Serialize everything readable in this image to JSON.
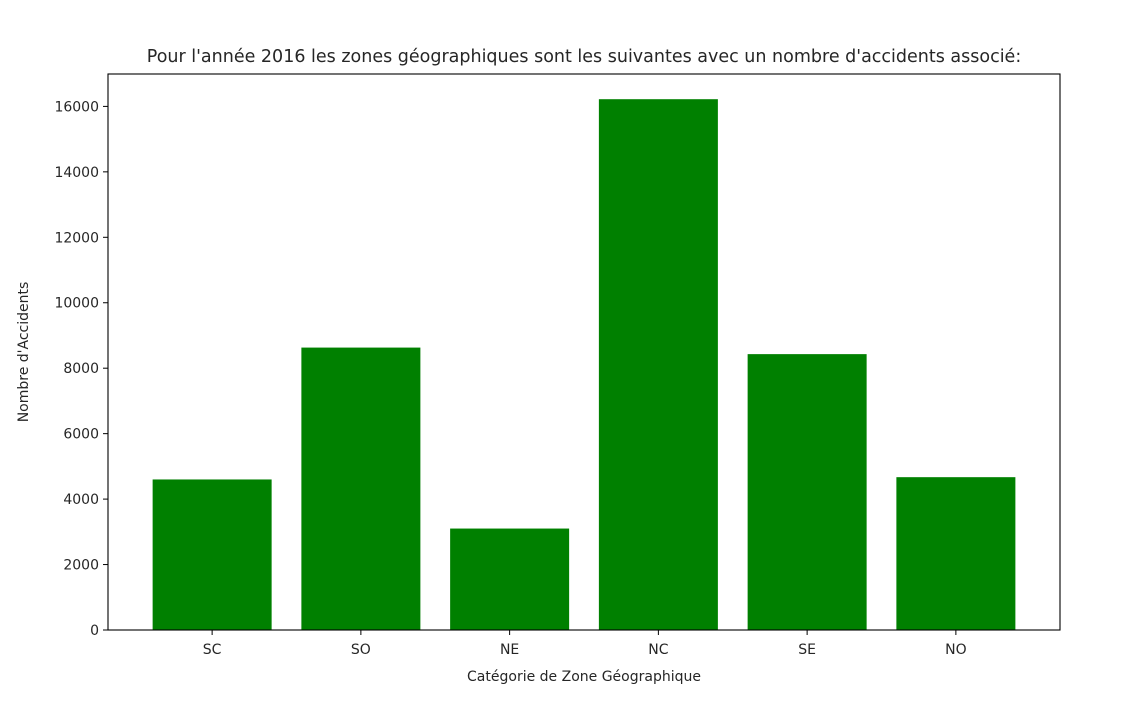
{
  "chart_data": {
    "type": "bar",
    "title": "Pour l'année 2016 les zones géographiques sont les suivantes avec un nombre d'accidents associé:",
    "xlabel": "Catégorie de Zone Géographique",
    "ylabel": "Nombre d'Accidents",
    "categories": [
      "SC",
      "SO",
      "NE",
      "NC",
      "SE",
      "NO"
    ],
    "values": [
      4600,
      8630,
      3100,
      16220,
      8430,
      4670
    ],
    "ylim": [
      0,
      16990
    ],
    "yticks": [
      0,
      2000,
      4000,
      6000,
      8000,
      10000,
      12000,
      14000,
      16000
    ],
    "bar_color": "#008000",
    "grid": false,
    "legend": "none"
  }
}
